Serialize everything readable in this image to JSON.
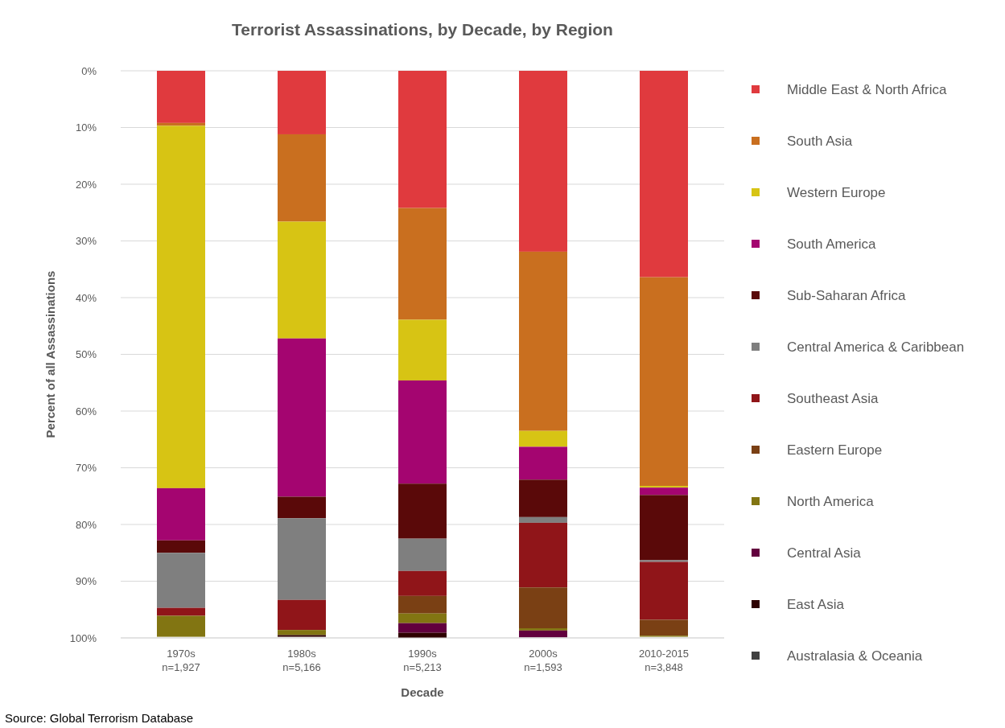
{
  "chart_data": {
    "type": "bar",
    "stacked": true,
    "title": "Terrorist Assassinations, by Decade, by Region",
    "xlabel": "Decade",
    "ylabel": "Percent of all Assassinations",
    "categories": [
      "1970s\nn=1,927",
      "1980s\nn=5,166",
      "1990s\nn=5,213",
      "2000s\nn=1,593",
      "2010-2015\nn=3,848"
    ],
    "ylim": [
      100,
      0
    ],
    "yticks": [
      {
        "value": 0,
        "label": "0%"
      },
      {
        "value": 10,
        "label": "10%"
      },
      {
        "value": 20,
        "label": "20%"
      },
      {
        "value": 30,
        "label": "30%"
      },
      {
        "value": 40,
        "label": "40%"
      },
      {
        "value": 50,
        "label": "50%"
      },
      {
        "value": 60,
        "label": "60%"
      },
      {
        "value": 70,
        "label": "70%"
      },
      {
        "value": 80,
        "label": "80%"
      },
      {
        "value": 90,
        "label": "90%"
      },
      {
        "value": 100,
        "label": "100%"
      }
    ],
    "grid": "y",
    "legend": "right",
    "series": [
      {
        "name": "Middle East & North Africa",
        "color": "#e03a3e",
        "values": [
          9.2,
          11.2,
          24.2,
          31.9,
          36.4
        ]
      },
      {
        "name": "South Asia",
        "color": "#c96f1f",
        "values": [
          0.5,
          15.4,
          19.7,
          31.6,
          36.8
        ]
      },
      {
        "name": "Western Europe",
        "color": "#d7c414",
        "values": [
          63.9,
          20.6,
          10.7,
          2.8,
          0.3
        ]
      },
      {
        "name": "South America",
        "color": "#a40570",
        "values": [
          9.2,
          27.9,
          18.2,
          5.8,
          1.3
        ]
      },
      {
        "name": "Sub-Saharan Africa",
        "color": "#5a0909",
        "values": [
          2.2,
          3.8,
          9.7,
          6.6,
          11.5
        ]
      },
      {
        "name": "Central America & Caribbean",
        "color": "#7f7f7f",
        "values": [
          9.7,
          14.4,
          5.7,
          1.0,
          0.3
        ]
      },
      {
        "name": "Southeast Asia",
        "color": "#901519",
        "values": [
          1.4,
          5.3,
          4.4,
          11.4,
          10.2
        ]
      },
      {
        "name": "Eastern Europe",
        "color": "#7a4014",
        "values": [
          0,
          0,
          3.1,
          7.2,
          2.8
        ]
      },
      {
        "name": "North America",
        "color": "#827512",
        "values": [
          3.7,
          0.9,
          1.7,
          0.4,
          0.2
        ]
      },
      {
        "name": "Central Asia",
        "color": "#62003e",
        "values": [
          0,
          0,
          1.7,
          1.2,
          null
        ]
      },
      {
        "name": "East Asia",
        "color": "#2e0000",
        "values": [
          null,
          0.3,
          0.9,
          0,
          0
        ]
      },
      {
        "name": "Australasia & Oceania",
        "color": "#404040",
        "values": [
          0,
          null,
          0,
          null,
          0
        ]
      }
    ],
    "annotations": [
      "Source: Global Terrorism Database"
    ]
  }
}
